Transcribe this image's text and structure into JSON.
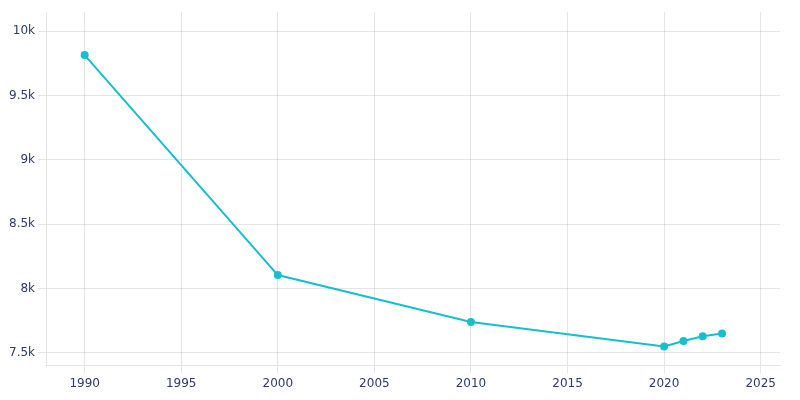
{
  "chart_data": {
    "type": "line",
    "x": [
      1990,
      2000,
      2010,
      2020,
      2021,
      2022,
      2023
    ],
    "values": [
      9815,
      8104,
      7739,
      7548,
      7591,
      7628,
      7649
    ],
    "color": "#17becf",
    "xlim": [
      1988,
      2026
    ],
    "ylim": [
      7400,
      10150
    ],
    "xticks": [
      1990,
      1995,
      2000,
      2005,
      2010,
      2015,
      2020,
      2025
    ],
    "yticks": [
      {
        "value": 7500,
        "label": "7.5k"
      },
      {
        "value": 8000,
        "label": "8k"
      },
      {
        "value": 8500,
        "label": "8.5k"
      },
      {
        "value": 9000,
        "label": "9k"
      },
      {
        "value": 9500,
        "label": "9.5k"
      },
      {
        "value": 10000,
        "label": "10k"
      }
    ],
    "grid": true
  }
}
